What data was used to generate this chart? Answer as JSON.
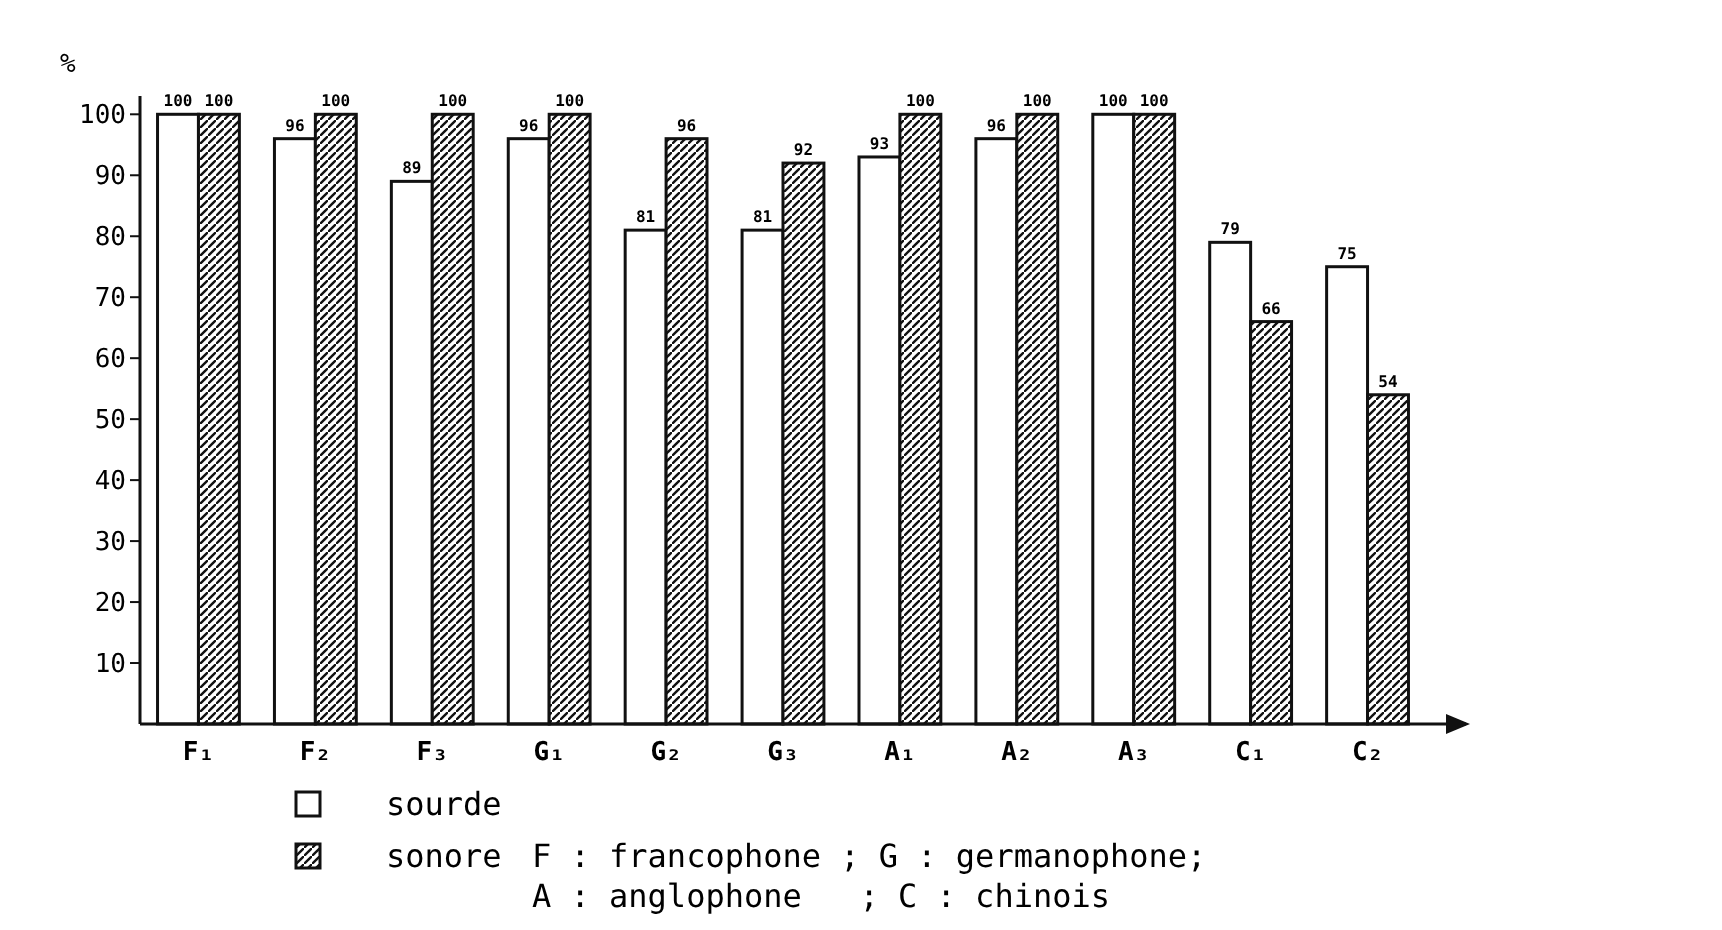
{
  "chart_data": {
    "type": "bar",
    "ylabel": "%",
    "categories": [
      "F₁",
      "F₂",
      "F₃",
      "G₁",
      "G₂",
      "G₃",
      "A₁",
      "A₂",
      "A₃",
      "C₁",
      "C₂"
    ],
    "series": [
      {
        "name": "sourde",
        "color": "#ffffff",
        "values": [
          100,
          96,
          89,
          96,
          81,
          81,
          93,
          96,
          100,
          79,
          75
        ]
      },
      {
        "name": "sonore",
        "color": "#111111",
        "values": [
          100,
          100,
          100,
          100,
          96,
          92,
          100,
          100,
          100,
          66,
          54
        ]
      }
    ],
    "ylim": [
      0,
      103
    ],
    "yticks": [
      10,
      20,
      30,
      40,
      50,
      60,
      70,
      80,
      90,
      100
    ],
    "grid": false,
    "data_labels": true,
    "legend": "bottom",
    "annotations": [
      "F : francophone ; G : germanophone;",
      "A : anglophone   ; C : chinois"
    ]
  }
}
